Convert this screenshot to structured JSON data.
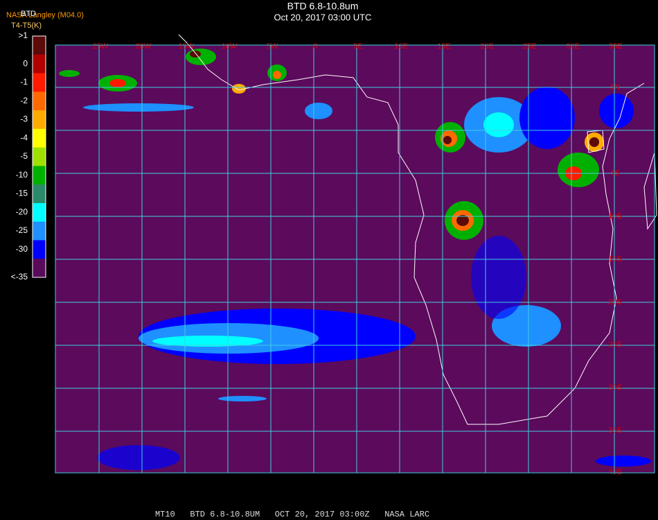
{
  "header": {
    "title": "BTD 6.8-10.8um",
    "subtitle": "Oct 20, 2017 03:00 UTC",
    "source": "NASA Langley (M04.0)",
    "product": "BTD",
    "units": "T4-T5(K)"
  },
  "colorbar": {
    "items": [
      {
        "label": ">1",
        "color": "#5c0a0a"
      },
      {
        "label": "0",
        "color": "#b00000"
      },
      {
        "label": "-1",
        "color": "#ff1a00"
      },
      {
        "label": "-2",
        "color": "#ff6a00"
      },
      {
        "label": "-3",
        "color": "#ffaa00"
      },
      {
        "label": "-4",
        "color": "#ffff00"
      },
      {
        "label": "-5",
        "color": "#9ee000"
      },
      {
        "label": "-10",
        "color": "#00b000"
      },
      {
        "label": "-15",
        "color": "#2a8a6a"
      },
      {
        "label": "-20",
        "color": "#00ffff"
      },
      {
        "label": "-25",
        "color": "#1e90ff"
      },
      {
        "label": "-30",
        "color": "#0000ff"
      },
      {
        "label": "<-35",
        "color": "#5a0a5a"
      }
    ]
  },
  "map": {
    "longitude_labels": [
      "25W",
      "20W",
      "15W",
      "10W",
      "5W",
      "0",
      "5E",
      "10E",
      "15E",
      "20E",
      "25E",
      "30E",
      "35E"
    ],
    "latitude_labels": [
      "5N",
      "5S",
      "10S",
      "15S",
      "20S",
      "25S",
      "30S",
      "35S",
      "40S"
    ]
  },
  "footer": "MT10   BTD 6.8-10.8UM   OCT 20, 2017 03:00Z   NASA LARC"
}
